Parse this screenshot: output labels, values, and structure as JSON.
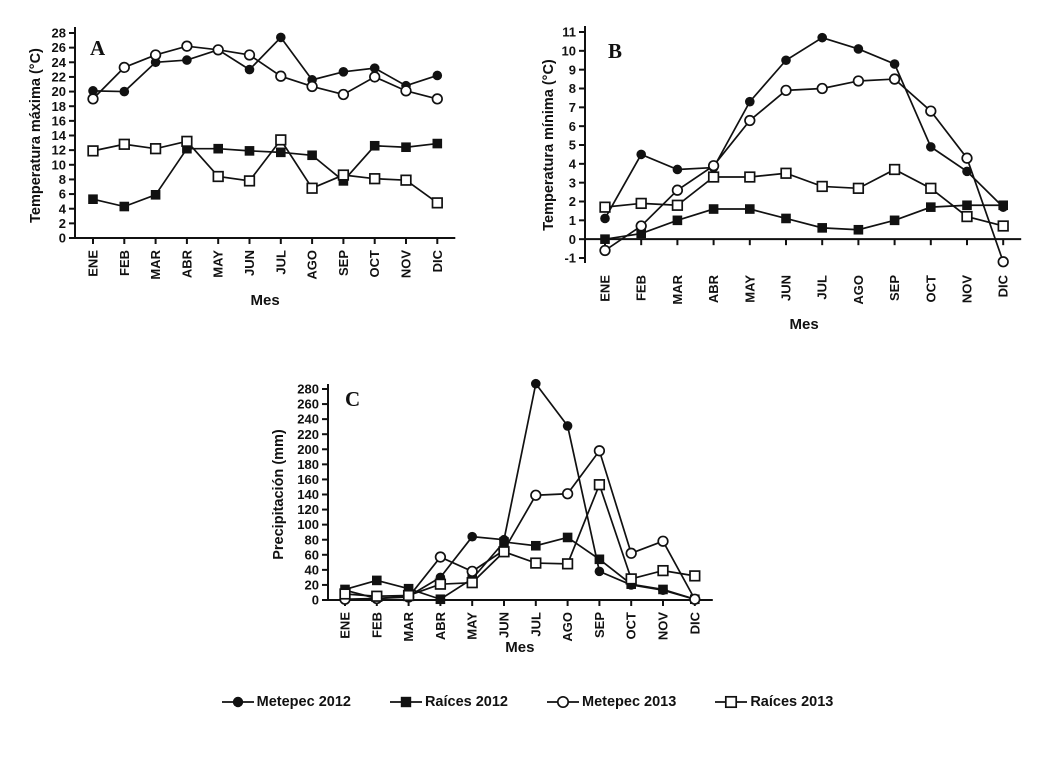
{
  "figure": {
    "background": "#ffffff",
    "ink_color": "#111111"
  },
  "months": [
    "ENE",
    "FEB",
    "MAR",
    "ABR",
    "MAY",
    "JUN",
    "JUL",
    "AGO",
    "SEP",
    "OCT",
    "NOV",
    "DIC"
  ],
  "legend": {
    "items": [
      {
        "label": "Metepec 2012",
        "marker": "filled-circle"
      },
      {
        "label": "Raíces 2012",
        "marker": "filled-square"
      },
      {
        "label": "Metepec 2013",
        "marker": "open-circle"
      },
      {
        "label": "Raíces 2013",
        "marker": "open-square"
      }
    ]
  },
  "chart_data": [
    {
      "panel": "A",
      "type": "line",
      "title": "",
      "ylabel": "Temperatura máxima (°C)",
      "xlabel": "Mes",
      "categories": [
        "ENE",
        "FEB",
        "MAR",
        "ABR",
        "MAY",
        "JUN",
        "JUL",
        "AGO",
        "SEP",
        "OCT",
        "NOV",
        "DIC"
      ],
      "ylim": [
        0,
        28
      ],
      "ytick_step": 2,
      "grid": false,
      "series": [
        {
          "name": "Metepec 2012",
          "marker": "filled-circle",
          "values": [
            20.1,
            20.0,
            24.0,
            24.3,
            25.7,
            23.0,
            27.4,
            21.6,
            22.7,
            23.2,
            20.8,
            22.2
          ]
        },
        {
          "name": "Raíces 2012",
          "marker": "filled-square",
          "values": [
            5.3,
            4.3,
            5.9,
            12.2,
            12.2,
            11.9,
            11.7,
            11.3,
            7.8,
            12.6,
            12.4,
            12.9
          ]
        },
        {
          "name": "Metepec 2013",
          "marker": "open-circle",
          "values": [
            19.0,
            23.3,
            25.0,
            26.2,
            25.7,
            25.0,
            22.1,
            20.7,
            19.6,
            22.0,
            20.1,
            19.0
          ]
        },
        {
          "name": "Raíces 2013",
          "marker": "open-square",
          "values": [
            11.9,
            12.8,
            12.2,
            13.2,
            8.4,
            7.8,
            13.4,
            6.8,
            8.6,
            8.1,
            7.9,
            4.8
          ]
        }
      ]
    },
    {
      "panel": "B",
      "type": "line",
      "title": "",
      "ylabel": "Temperatura mínima (°C)",
      "xlabel": "Mes",
      "categories": [
        "ENE",
        "FEB",
        "MAR",
        "ABR",
        "MAY",
        "JUN",
        "JUL",
        "AGO",
        "SEP",
        "OCT",
        "NOV",
        "DIC"
      ],
      "ylim": [
        -1,
        11
      ],
      "ytick_step": 1,
      "grid": false,
      "series": [
        {
          "name": "Metepec 2012",
          "marker": "filled-circle",
          "values": [
            1.1,
            4.5,
            3.7,
            3.8,
            7.3,
            9.5,
            10.7,
            10.1,
            9.3,
            4.9,
            3.6,
            1.7
          ]
        },
        {
          "name": "Raíces 2012",
          "marker": "filled-square",
          "values": [
            0.0,
            0.3,
            1.0,
            1.6,
            1.6,
            1.1,
            0.6,
            0.5,
            1.0,
            1.7,
            1.8,
            1.8
          ]
        },
        {
          "name": "Metepec 2013",
          "marker": "open-circle",
          "values": [
            -0.6,
            0.7,
            2.6,
            3.9,
            6.3,
            7.9,
            8.0,
            8.4,
            8.5,
            6.8,
            4.3,
            -1.2
          ]
        },
        {
          "name": "Raíces 2013",
          "marker": "open-square",
          "values": [
            1.7,
            1.9,
            1.8,
            3.3,
            3.3,
            3.5,
            2.8,
            2.7,
            3.7,
            2.7,
            1.2,
            0.7
          ]
        }
      ]
    },
    {
      "panel": "C",
      "type": "line",
      "title": "",
      "ylabel": "Precipitación (mm)",
      "xlabel": "Mes",
      "categories": [
        "ENE",
        "FEB",
        "MAR",
        "ABR",
        "MAY",
        "JUN",
        "JUL",
        "AGO",
        "SEP",
        "OCT",
        "NOV",
        "DIC"
      ],
      "ylim": [
        0,
        280
      ],
      "ytick_step": 20,
      "grid": false,
      "series": [
        {
          "name": "Metepec 2012",
          "marker": "filled-circle",
          "values": [
            13,
            2,
            5,
            30,
            84,
            80,
            287,
            231,
            38,
            20,
            13,
            1
          ]
        },
        {
          "name": "Raíces 2012",
          "marker": "filled-square",
          "values": [
            14,
            26,
            15,
            1,
            28,
            77,
            72,
            83,
            54,
            21,
            14,
            1
          ]
        },
        {
          "name": "Metepec 2013",
          "marker": "open-circle",
          "values": [
            1,
            2,
            4,
            57,
            38,
            66,
            139,
            141,
            198,
            62,
            78,
            1
          ]
        },
        {
          "name": "Raíces 2013",
          "marker": "open-square",
          "values": [
            8,
            5,
            6,
            21,
            23,
            64,
            49,
            48,
            153,
            28,
            39,
            32
          ]
        }
      ]
    }
  ]
}
